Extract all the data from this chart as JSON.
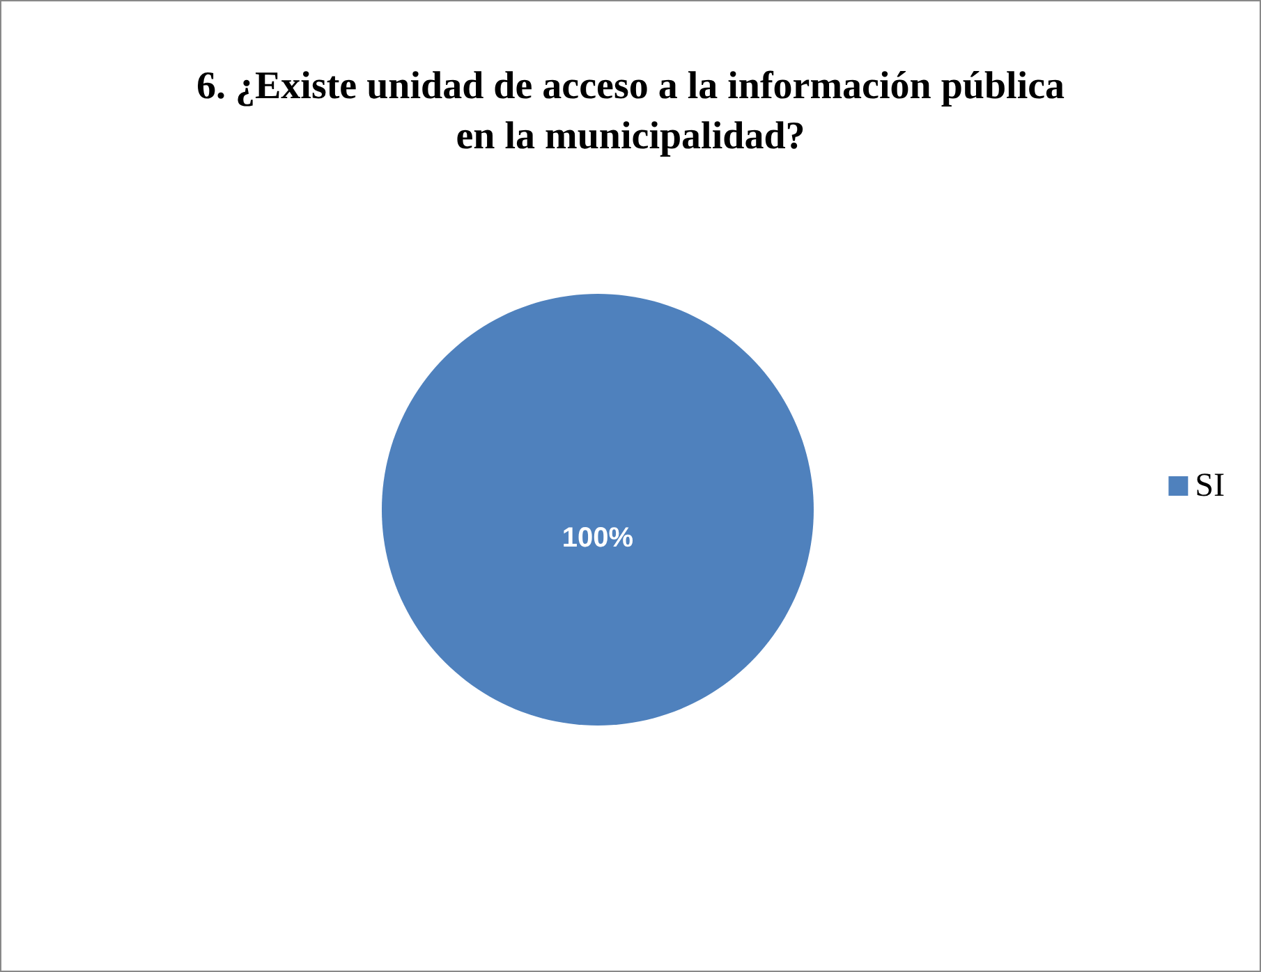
{
  "chart_data": {
    "type": "pie",
    "title": "6. ¿Existe unidad de acceso a la información pública\nen la municipalidad?",
    "categories": [
      "SI"
    ],
    "values": [
      100
    ],
    "colors": [
      "#4f81bd"
    ],
    "value_labels": [
      "100%"
    ],
    "legend": "right"
  }
}
